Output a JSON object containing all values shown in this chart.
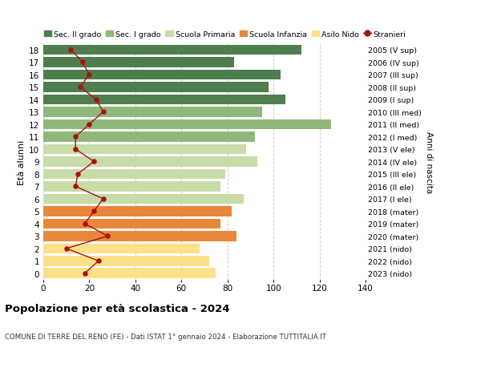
{
  "ages": [
    0,
    1,
    2,
    3,
    4,
    5,
    6,
    7,
    8,
    9,
    10,
    11,
    12,
    13,
    14,
    15,
    16,
    17,
    18
  ],
  "bar_values": [
    75,
    72,
    68,
    84,
    77,
    82,
    87,
    77,
    79,
    93,
    88,
    92,
    125,
    95,
    105,
    98,
    103,
    83,
    112
  ],
  "bar_colors": [
    "#FFE08A",
    "#FFE08A",
    "#FFE08A",
    "#E8873A",
    "#E8873A",
    "#E8873A",
    "#C8DCA8",
    "#C8DCA8",
    "#C8DCA8",
    "#C8DCA8",
    "#C8DCA8",
    "#8FB87A",
    "#8FB87A",
    "#8FB87A",
    "#4E7D4E",
    "#4E7D4E",
    "#4E7D4E",
    "#4E7D4E",
    "#4E7D4E"
  ],
  "stranieri_values": [
    18,
    24,
    10,
    28,
    18,
    22,
    26,
    14,
    15,
    22,
    14,
    14,
    20,
    26,
    23,
    16,
    20,
    17,
    12
  ],
  "right_labels": [
    "2023 (nido)",
    "2022 (nido)",
    "2021 (nido)",
    "2020 (mater)",
    "2019 (mater)",
    "2018 (mater)",
    "2017 (I ele)",
    "2016 (II ele)",
    "2015 (III ele)",
    "2014 (IV ele)",
    "2013 (V ele)",
    "2012 (I med)",
    "2011 (II med)",
    "2010 (III med)",
    "2009 (I sup)",
    "2008 (II sup)",
    "2007 (III sup)",
    "2006 (IV sup)",
    "2005 (V sup)"
  ],
  "legend_labels": [
    "Sec. II grado",
    "Sec. I grado",
    "Scuola Primaria",
    "Scuola Infanzia",
    "Asilo Nido",
    "Stranieri"
  ],
  "legend_colors": [
    "#4E7D4E",
    "#8FB87A",
    "#C8DCA8",
    "#E8873A",
    "#FFE08A",
    "#AA1111"
  ],
  "ylabel_left": "Età alunni",
  "ylabel_right": "Anni di nascita",
  "title": "Popolazione per età scolastica - 2024",
  "subtitle": "COMUNE DI TERRE DEL RENO (FE) - Dati ISTAT 1° gennaio 2024 - Elaborazione TUTTITALIA.IT",
  "xlim": [
    0,
    140
  ],
  "xticks": [
    0,
    20,
    40,
    60,
    80,
    100,
    120,
    140
  ],
  "bg_color": "#FFFFFF",
  "grid_color": "#CCCCCC"
}
